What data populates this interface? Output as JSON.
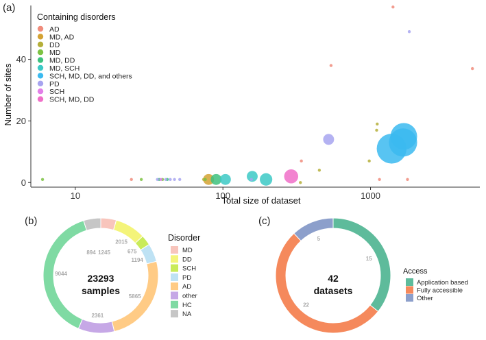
{
  "panels": {
    "a": "(a)",
    "b": "(b)",
    "c": "(c)"
  },
  "chart_data": [
    {
      "type": "scatter",
      "panel": "(a)",
      "xlabel": "Total size of dataset",
      "ylabel": "Number of sites",
      "xscale": "log",
      "xlim": [
        5,
        5500
      ],
      "ylim": [
        -1.5,
        57.5
      ],
      "x_ticks": [
        10,
        100,
        1000
      ],
      "x_tick_labels": [
        "10",
        "100",
        "1000"
      ],
      "y_ticks": [
        0,
        20,
        40
      ],
      "y_tick_labels": [
        "0",
        "20",
        "40"
      ],
      "grid": false,
      "legend": {
        "title": "Containing disorders",
        "placement": "top-left",
        "entries": [
          {
            "label": "AD",
            "color": "#F08C7C"
          },
          {
            "label": "MD, AD",
            "color": "#D4A233"
          },
          {
            "label": "DD",
            "color": "#B5AF3A"
          },
          {
            "label": "MD",
            "color": "#7DC243"
          },
          {
            "label": "MD, DD",
            "color": "#3DC17E"
          },
          {
            "label": "MD, SCH",
            "color": "#3CC9C6"
          },
          {
            "label": "SCH, MD, DD, and others",
            "color": "#3BBAF0"
          },
          {
            "label": "PD",
            "color": "#A7A4F0"
          },
          {
            "label": "SCH",
            "color": "#E27FE8"
          },
          {
            "label": "SCH, MD, DD",
            "color": "#F06FC8"
          }
        ]
      },
      "series": [
        {
          "name": "AD",
          "color": "#F08C7C",
          "points": [
            {
              "x": 24,
              "y": 1
            },
            {
              "x": 340,
              "y": 7
            },
            {
              "x": 540,
              "y": 38
            },
            {
              "x": 1150,
              "y": 1
            },
            {
              "x": 1420,
              "y": 57
            },
            {
              "x": 1780,
              "y": 1
            },
            {
              "x": 4900,
              "y": 37
            }
          ],
          "sizes": [
            1,
            1,
            1,
            1,
            1,
            1,
            1
          ]
        },
        {
          "name": "MD, AD",
          "color": "#D4A233",
          "points": [
            {
              "x": 80,
              "y": 1
            }
          ],
          "sizes": [
            6
          ]
        },
        {
          "name": "DD",
          "color": "#B5AF3A",
          "points": [
            {
              "x": 74,
              "y": 1
            },
            {
              "x": 335,
              "y": 0
            },
            {
              "x": 450,
              "y": 4
            },
            {
              "x": 980,
              "y": 7
            },
            {
              "x": 1100,
              "y": 17
            },
            {
              "x": 1110,
              "y": 19
            }
          ],
          "sizes": [
            1,
            1,
            1,
            1,
            1,
            1
          ]
        },
        {
          "name": "MD",
          "color": "#7DC243",
          "points": [
            {
              "x": 6,
              "y": 1
            },
            {
              "x": 28,
              "y": 1
            },
            {
              "x": 39,
              "y": 1
            },
            {
              "x": 76,
              "y": 1
            }
          ],
          "sizes": [
            1,
            1,
            1,
            1
          ]
        },
        {
          "name": "MD, DD",
          "color": "#3DC17E",
          "points": [
            {
              "x": 37,
              "y": 1
            },
            {
              "x": 42,
              "y": 1
            },
            {
              "x": 90,
              "y": 1
            }
          ],
          "sizes": [
            1,
            1,
            6
          ]
        },
        {
          "name": "MD, SCH",
          "color": "#3CC9C6",
          "points": [
            {
              "x": 104,
              "y": 1
            },
            {
              "x": 158,
              "y": 2
            },
            {
              "x": 196,
              "y": 1
            }
          ],
          "sizes": [
            6,
            6,
            7
          ]
        },
        {
          "name": "SCH, MD, DD, and others",
          "color": "#3BBAF0",
          "points": [
            {
              "x": 1390,
              "y": 11
            },
            {
              "x": 1660,
              "y": 13
            },
            {
              "x": 1680,
              "y": 15
            }
          ],
          "sizes": [
            18,
            17,
            16
          ]
        },
        {
          "name": "PD",
          "color": "#A7A4F0",
          "points": [
            {
              "x": 36,
              "y": 1
            },
            {
              "x": 41,
              "y": 1
            },
            {
              "x": 44,
              "y": 1
            },
            {
              "x": 47,
              "y": 1
            },
            {
              "x": 51,
              "y": 1
            },
            {
              "x": 156,
              "y": 1
            },
            {
              "x": 520,
              "y": 14
            },
            {
              "x": 1830,
              "y": 49
            }
          ],
          "sizes": [
            1,
            1,
            1,
            1,
            1,
            1,
            6,
            1
          ]
        },
        {
          "name": "SCH",
          "color": "#E27FE8",
          "points": [
            {
              "x": 38,
              "y": 1
            }
          ],
          "sizes": [
            1
          ]
        },
        {
          "name": "SCH, MD, DD",
          "color": "#F06FC8",
          "points": [
            {
              "x": 290,
              "y": 2
            }
          ],
          "sizes": [
            8
          ]
        }
      ]
    },
    {
      "type": "pie",
      "panel": "(b)",
      "center_value": "23293",
      "center_label": "samples",
      "legend": {
        "title": "Disorder",
        "placement": "right"
      },
      "slices": [
        {
          "label": "MD",
          "value": 1015,
          "display": "",
          "color": "#F8C5BC"
        },
        {
          "label": "DD",
          "value": 2015,
          "display": "2015",
          "color": "#F4F47A"
        },
        {
          "label": "SCH",
          "value": 675,
          "display": "675",
          "color": "#C9EB5A"
        },
        {
          "label": "PD",
          "value": 1194,
          "display": "1194",
          "color": "#BEE2F4"
        },
        {
          "label": "AD",
          "value": 5865,
          "display": "5865",
          "color": "#FFCB85"
        },
        {
          "label": "other",
          "value": 2361,
          "display": "2361",
          "color": "#C6A8E6"
        },
        {
          "label": "HC",
          "value": 9044,
          "display": "9044",
          "color": "#7FDAA3"
        },
        {
          "label": "NA",
          "value": 1124,
          "display": "",
          "color": "#C6C6C6"
        }
      ],
      "extra_labels": [
        "894",
        "1245"
      ]
    },
    {
      "type": "pie",
      "panel": "(c)",
      "center_value": "42",
      "center_label": "datasets",
      "legend": {
        "title": "Access",
        "placement": "right"
      },
      "slices": [
        {
          "label": "Application based",
          "value": 15,
          "display": "15",
          "color": "#5EBB9B"
        },
        {
          "label": "Fully accessible",
          "value": 22,
          "display": "22",
          "color": "#F5895C"
        },
        {
          "label": "Other",
          "value": 5,
          "display": "5",
          "color": "#8C9FCB"
        }
      ]
    }
  ]
}
